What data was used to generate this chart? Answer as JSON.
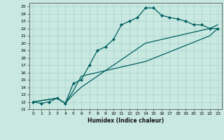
{
  "xlabel": "Humidex (Indice chaleur)",
  "bg_color": "#c8e8e0",
  "grid_color": "#a0cccc",
  "line_color": "#006060",
  "marker": "D",
  "markersize": 2.0,
  "linewidth": 0.9,
  "xlim": [
    -0.5,
    23.5
  ],
  "ylim": [
    11,
    25.5
  ],
  "xticks": [
    0,
    1,
    2,
    3,
    4,
    5,
    6,
    7,
    8,
    9,
    10,
    11,
    12,
    13,
    14,
    15,
    16,
    17,
    18,
    19,
    20,
    21,
    22,
    23
  ],
  "yticks": [
    11,
    12,
    13,
    14,
    15,
    16,
    17,
    18,
    19,
    20,
    21,
    22,
    23,
    24,
    25
  ],
  "series": [
    {
      "x": [
        0,
        1,
        2,
        3,
        4,
        5,
        6,
        7,
        8,
        9,
        10,
        11,
        12,
        13,
        14,
        15,
        16,
        17,
        18,
        19,
        20,
        21,
        22,
        23
      ],
      "y": [
        12,
        11.8,
        12,
        12.5,
        11.8,
        14.5,
        15,
        17,
        19,
        19.5,
        20.5,
        22.5,
        23,
        23.5,
        24.8,
        24.8,
        23.8,
        23.5,
        23.3,
        23,
        22.5,
        22.5,
        22,
        22
      ],
      "has_markers": true
    },
    {
      "x": [
        0,
        3,
        4,
        5,
        6,
        14,
        22,
        23
      ],
      "y": [
        12,
        12.5,
        11.8,
        13,
        14,
        20,
        22,
        22.5
      ],
      "has_markers": false
    },
    {
      "x": [
        0,
        3,
        4,
        5,
        6,
        14,
        22,
        23
      ],
      "y": [
        12,
        12.5,
        11.8,
        13.5,
        15.5,
        17.5,
        21,
        22
      ],
      "has_markers": false
    }
  ]
}
